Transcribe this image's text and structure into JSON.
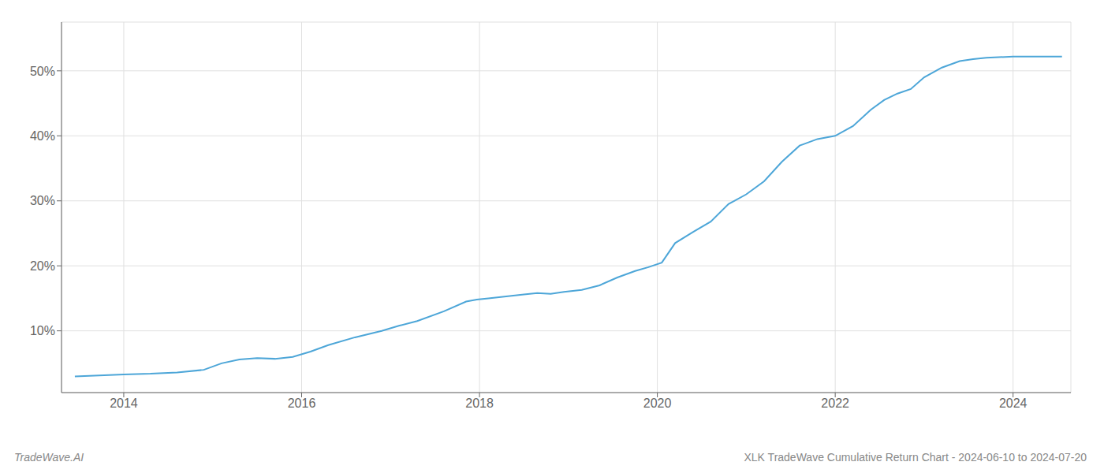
{
  "chart_data": {
    "type": "line",
    "title": "XLK TradeWave Cumulative Return Chart - 2024-06-10 to 2024-07-20",
    "annotations": [
      "TradeWave.AI"
    ],
    "color": "#4da6d8",
    "grid": true,
    "xlim": [
      2013.3,
      2024.65
    ],
    "xticks": [
      2014,
      2016,
      2018,
      2020,
      2022,
      2024
    ],
    "ylim": [
      0.005,
      0.575
    ],
    "yticks": [
      {
        "value": 0.1,
        "label": "10%"
      },
      {
        "value": 0.2,
        "label": "20%"
      },
      {
        "value": 0.3,
        "label": "30%"
      },
      {
        "value": 0.4,
        "label": "40%"
      },
      {
        "value": 0.5,
        "label": "50%"
      }
    ],
    "x": [
      2013.45,
      2014.0,
      2014.3,
      2014.6,
      2014.9,
      2015.1,
      2015.3,
      2015.5,
      2015.7,
      2015.9,
      2016.1,
      2016.3,
      2016.6,
      2016.9,
      2017.1,
      2017.3,
      2017.6,
      2017.85,
      2017.97,
      2018.1,
      2018.3,
      2018.5,
      2018.65,
      2018.8,
      2018.95,
      2019.15,
      2019.35,
      2019.55,
      2019.75,
      2019.9,
      2020.05,
      2020.2,
      2020.4,
      2020.6,
      2020.8,
      2021.0,
      2021.2,
      2021.4,
      2021.6,
      2021.8,
      2022.0,
      2022.2,
      2022.4,
      2022.55,
      2022.7,
      2022.85,
      2023.0,
      2023.2,
      2023.4,
      2023.55,
      2023.7,
      2024.0,
      2024.3,
      2024.55
    ],
    "values": [
      0.03,
      0.033,
      0.034,
      0.036,
      0.04,
      0.05,
      0.056,
      0.058,
      0.057,
      0.06,
      0.068,
      0.078,
      0.09,
      0.1,
      0.108,
      0.115,
      0.13,
      0.145,
      0.148,
      0.15,
      0.153,
      0.156,
      0.158,
      0.157,
      0.16,
      0.163,
      0.17,
      0.182,
      0.192,
      0.198,
      0.205,
      0.235,
      0.252,
      0.268,
      0.295,
      0.31,
      0.33,
      0.36,
      0.385,
      0.395,
      0.4,
      0.415,
      0.44,
      0.455,
      0.465,
      0.472,
      0.49,
      0.505,
      0.515,
      0.518,
      0.52,
      0.522,
      0.522,
      0.522
    ]
  }
}
